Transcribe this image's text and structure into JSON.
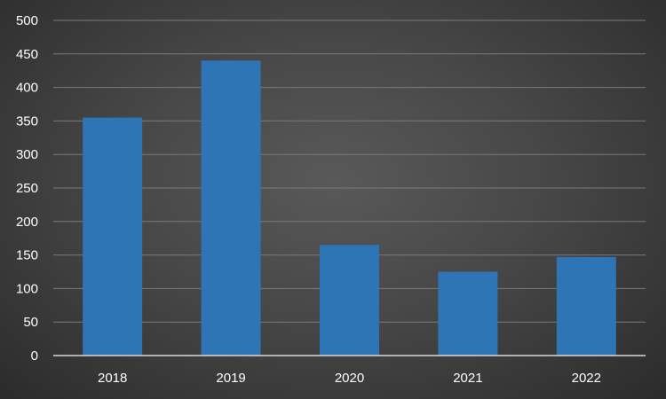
{
  "chart_data": {
    "type": "bar",
    "categories": [
      "2018",
      "2019",
      "2020",
      "2021",
      "2022"
    ],
    "values": [
      355,
      440,
      165,
      125,
      147
    ],
    "title": "",
    "xlabel": "",
    "ylabel": "",
    "ylim": [
      0,
      500
    ],
    "yticks": [
      "0",
      "50",
      "100",
      "150",
      "200",
      "250",
      "300",
      "350",
      "400",
      "450",
      "500"
    ],
    "grid": true,
    "legend": "none",
    "bar_color": "#2e75b6",
    "gridline_color": "#7a7a7a",
    "axis_color": "#d9d9d9",
    "text_color": "#ffffff"
  }
}
